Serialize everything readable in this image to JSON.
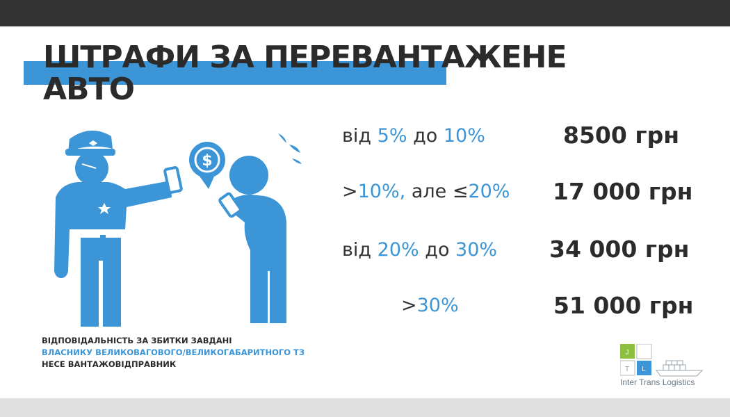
{
  "title": {
    "line1": "ШТРАФИ ЗА ПЕРЕВАНТАЖЕНЕ",
    "line2": "АВТО"
  },
  "colors": {
    "accent": "#3b95d6",
    "dark": "#2b2b2b",
    "topbar": "#333333",
    "logo_green": "#8cbf3f"
  },
  "fines": [
    {
      "parts": [
        "від ",
        "5%",
        " до ",
        "10%"
      ],
      "amount": "8500 грн"
    },
    {
      "parts": [
        ">",
        "10%,",
        " але  ≤",
        "20%"
      ],
      "amount": "17 000 грн"
    },
    {
      "parts": [
        "від ",
        "20%",
        " до ",
        "30%"
      ],
      "amount": "34 000 грн"
    },
    {
      "parts": [
        ">",
        "30%"
      ],
      "amount": "51 000 грн"
    }
  ],
  "note": {
    "line1_a": "ВІДПОВІДАЛЬНІСТЬ ЗА ЗБИТКИ ЗАВДАНІ",
    "line2": "ВЛАСНИКУ ВЕЛИКОВАГОВОГО/ВЕЛИКОГАБАРИТНОГО ТЗ",
    "line3": "НЕСЕ ВАНТАЖОВІДПРАВНИК"
  },
  "illustration": {
    "icon": "policeman-fining-driver-icon",
    "bubble_symbol": "$"
  },
  "logo": {
    "cells": [
      "J",
      "T",
      "L"
    ],
    "text": "Inter Trans Logistics"
  }
}
